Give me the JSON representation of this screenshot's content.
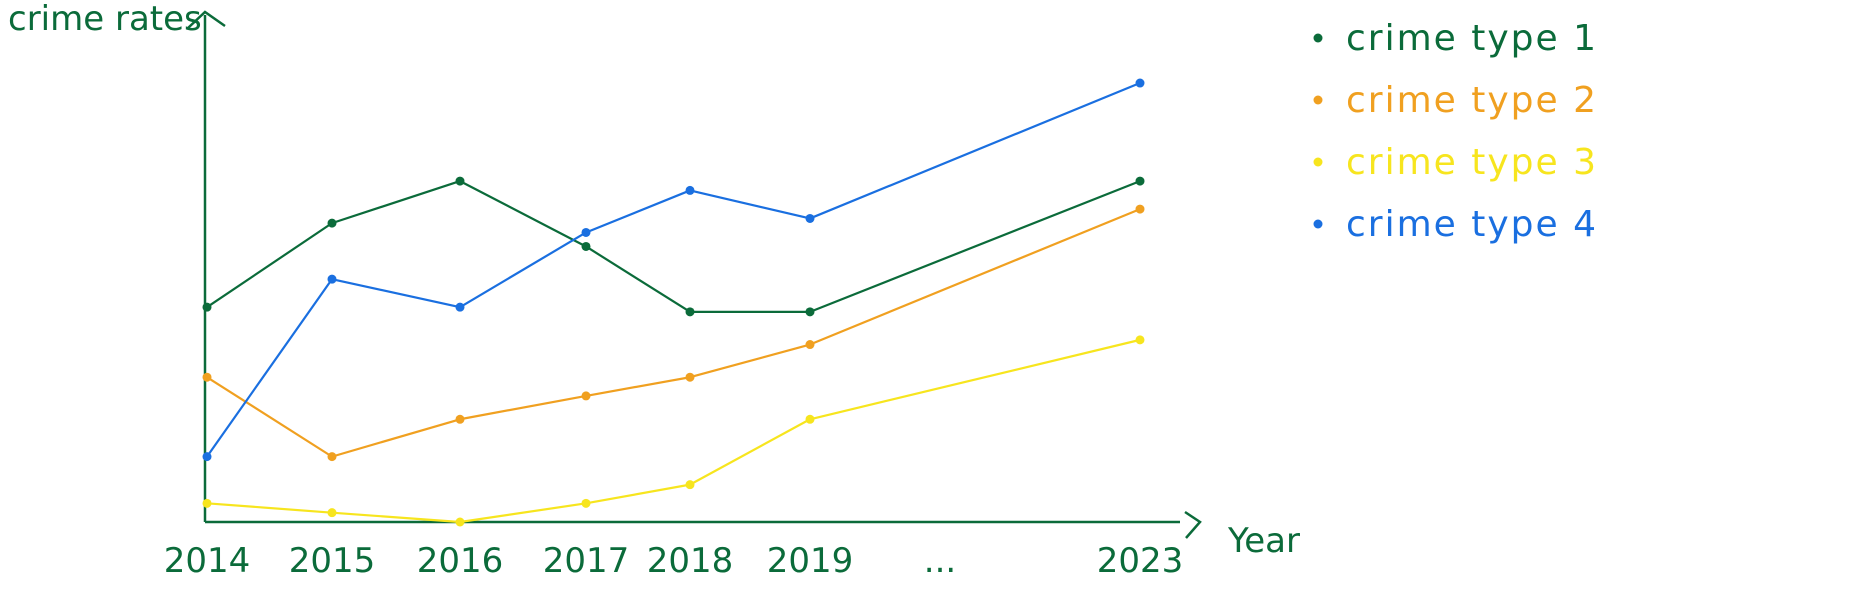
{
  "chart_data": {
    "type": "line",
    "xlabel": "Year",
    "ylabel": "crime rates",
    "x": [
      "2014",
      "2015",
      "2016",
      "2017",
      "2018",
      "2019",
      "...",
      "2023"
    ],
    "grid": false,
    "legend_position": "top-right",
    "ylim": [
      0,
      10
    ],
    "series": [
      {
        "name": "crime type 1",
        "color": "#0b6b3a",
        "values": [
          4.6,
          6.4,
          7.3,
          5.9,
          4.5,
          4.5,
          null,
          7.3
        ]
      },
      {
        "name": "crime type 2",
        "color": "#f0a020",
        "values": [
          3.1,
          1.4,
          2.2,
          2.7,
          3.1,
          3.8,
          null,
          6.7
        ]
      },
      {
        "name": "crime type 3",
        "color": "#f7e51e",
        "values": [
          0.4,
          0.2,
          0.0,
          0.4,
          0.8,
          2.2,
          null,
          3.9
        ]
      },
      {
        "name": "crime type 4",
        "color": "#1a6fe0",
        "values": [
          1.4,
          5.2,
          4.6,
          6.2,
          7.1,
          6.5,
          null,
          9.4
        ]
      }
    ]
  }
}
